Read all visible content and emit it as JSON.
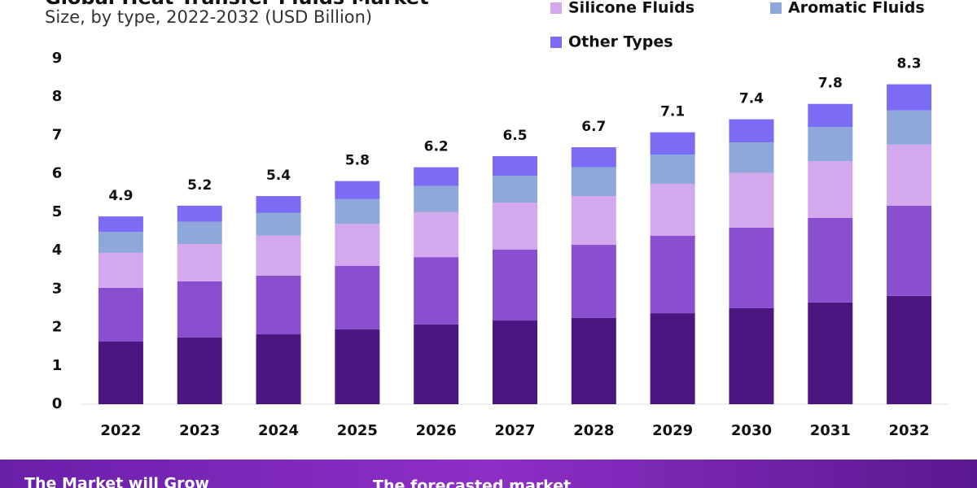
{
  "chart_data": {
    "type": "stacked_bar",
    "title": "Global Heat Transfer Fluids Market",
    "subtitle": "Size, by type, 2022-2032 (USD Billion)",
    "categories": [
      "2022",
      "2023",
      "2024",
      "2025",
      "2026",
      "2027",
      "2028",
      "2029",
      "2030",
      "2031",
      "2032"
    ],
    "series": [
      {
        "color": "#4b1680",
        "values": [
          1.63,
          1.74,
          1.82,
          1.95,
          2.08,
          2.18,
          2.25,
          2.37,
          2.5,
          2.65,
          2.82
        ]
      },
      {
        "color": "#8a4fcf",
        "values": [
          1.4,
          1.46,
          1.53,
          1.65,
          1.75,
          1.85,
          1.9,
          2.02,
          2.1,
          2.2,
          2.35
        ]
      },
      {
        "name": "Silicone Fluids",
        "color": "#d4a8ec",
        "values": [
          0.91,
          0.97,
          1.04,
          1.1,
          1.17,
          1.22,
          1.27,
          1.35,
          1.42,
          1.48,
          1.59
        ]
      },
      {
        "name": "Aromatic Fluids",
        "color": "#8fa8dc",
        "values": [
          0.55,
          0.58,
          0.59,
          0.64,
          0.68,
          0.7,
          0.75,
          0.76,
          0.8,
          0.89,
          0.89
        ]
      },
      {
        "name": "Other Types",
        "color": "#7b6bf5",
        "values": [
          0.4,
          0.42,
          0.44,
          0.47,
          0.49,
          0.51,
          0.52,
          0.58,
          0.6,
          0.6,
          0.68
        ]
      }
    ],
    "totals": [
      4.9,
      5.2,
      5.4,
      5.8,
      6.2,
      6.5,
      6.7,
      7.1,
      7.4,
      7.8,
      8.3
    ],
    "ylim": [
      0,
      9
    ],
    "yticks": [
      0,
      1,
      2,
      3,
      4,
      5,
      6,
      7,
      8,
      9
    ],
    "grid": false
  },
  "banner": {
    "texts": [
      "The Market will Grow",
      "The forecasted market"
    ]
  }
}
